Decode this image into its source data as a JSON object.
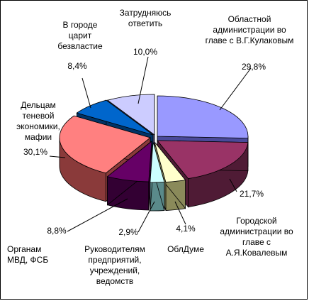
{
  "chart_data": {
    "type": "pie",
    "title": "",
    "style": "3d-exploded",
    "slices": [
      {
        "label": [
          "Областной",
          "администрации во",
          "главе с В.Г.Кулаковым"
        ],
        "value": 29.8,
        "display": "29,8%",
        "color": "#9999ff",
        "side": "#4a4a9a"
      },
      {
        "label": [
          "Городской",
          "администрации во",
          "главе с",
          "А.Я.Ковалевым"
        ],
        "value": 21.7,
        "display": "21,7%",
        "color": "#993366",
        "side": "#4f1b35"
      },
      {
        "label": [
          "ОблДуме"
        ],
        "value": 4.1,
        "display": "4,1%",
        "color": "#ffffcc",
        "side": "#8a8a5a"
      },
      {
        "label": [
          "Руководителям",
          "предприятий,",
          "учреждений,",
          "ведомств"
        ],
        "value": 2.9,
        "display": "2,9%",
        "color": "#ccffff",
        "side": "#5a8a8a"
      },
      {
        "label": [
          "Органам",
          "МВД, ФСБ"
        ],
        "value": 8.8,
        "display": "8,8%",
        "color": "#660066",
        "side": "#330033"
      },
      {
        "label": [
          "Дельцам",
          "теневой",
          "экономики,",
          "мафии"
        ],
        "value": 30.1,
        "display": "30,1%",
        "color": "#ff8080",
        "side": "#8a3a3a"
      },
      {
        "label": [
          "В городе",
          "царит",
          "безвластие"
        ],
        "value": 8.4,
        "display": "8,4%",
        "color": "#0066cc",
        "side": "#003366"
      },
      {
        "label": [
          "Затрудняюсь",
          "ответить"
        ],
        "value": 10.0,
        "display": "10,0%",
        "color": "#ccccff",
        "side": "#6a6a9a"
      }
    ]
  }
}
